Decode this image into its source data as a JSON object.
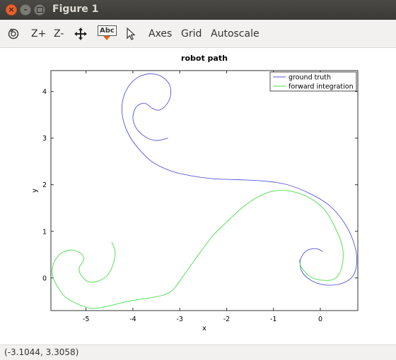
{
  "window": {
    "title": "Figure 1"
  },
  "toolbar": {
    "zoom_in": "Z+",
    "zoom_out": "Z-",
    "text_tool": "Abc",
    "axes": "Axes",
    "grid": "Grid",
    "autoscale": "Autoscale"
  },
  "status": {
    "coords": "(-3.1044, 3.3058)"
  },
  "colors": {
    "ground_truth": "#5555dd",
    "forward_integration": "#44dd44"
  },
  "chart_data": {
    "type": "line",
    "title": "robot path",
    "xlabel": "x",
    "ylabel": "y",
    "xlim": [
      -5.75,
      0.8
    ],
    "ylim": [
      -0.7,
      4.45
    ],
    "xticks": [
      -5,
      -4,
      -3,
      -2,
      -1,
      0
    ],
    "yticks": [
      0,
      1,
      2,
      3,
      4
    ],
    "legend_position": "top-right",
    "series": [
      {
        "name": "ground truth",
        "color": "#5555dd",
        "points": [
          [
            -3.25,
            3.0
          ],
          [
            -3.5,
            2.95
          ],
          [
            -3.72,
            3.02
          ],
          [
            -3.92,
            3.2
          ],
          [
            -4.0,
            3.45
          ],
          [
            -3.92,
            3.68
          ],
          [
            -3.75,
            3.75
          ],
          [
            -3.6,
            3.65
          ],
          [
            -3.45,
            3.6
          ],
          [
            -3.3,
            3.7
          ],
          [
            -3.2,
            3.9
          ],
          [
            -3.22,
            4.15
          ],
          [
            -3.4,
            4.33
          ],
          [
            -3.65,
            4.38
          ],
          [
            -3.9,
            4.3
          ],
          [
            -4.1,
            4.1
          ],
          [
            -4.22,
            3.8
          ],
          [
            -4.22,
            3.45
          ],
          [
            -4.1,
            3.1
          ],
          [
            -3.9,
            2.8
          ],
          [
            -3.6,
            2.5
          ],
          [
            -3.2,
            2.3
          ],
          [
            -2.8,
            2.2
          ],
          [
            -2.3,
            2.13
          ],
          [
            -1.8,
            2.11
          ],
          [
            -1.2,
            2.08
          ],
          [
            -0.7,
            2.0
          ],
          [
            -0.2,
            1.8
          ],
          [
            0.2,
            1.55
          ],
          [
            0.5,
            1.2
          ],
          [
            0.7,
            0.8
          ],
          [
            0.78,
            0.4
          ],
          [
            0.7,
            0.05
          ],
          [
            0.45,
            -0.12
          ],
          [
            0.1,
            -0.15
          ],
          [
            -0.2,
            -0.05
          ],
          [
            -0.4,
            0.15
          ],
          [
            -0.42,
            0.4
          ],
          [
            -0.3,
            0.58
          ],
          [
            -0.1,
            0.63
          ],
          [
            0.05,
            0.57
          ]
        ]
      },
      {
        "name": "forward integration",
        "color": "#44dd44",
        "points": [
          [
            -4.45,
            0.77
          ],
          [
            -4.38,
            0.55
          ],
          [
            -4.42,
            0.3
          ],
          [
            -4.55,
            0.05
          ],
          [
            -4.75,
            -0.07
          ],
          [
            -4.95,
            -0.08
          ],
          [
            -5.1,
            0.05
          ],
          [
            -5.15,
            0.2
          ],
          [
            -5.1,
            0.3
          ],
          [
            -5.05,
            0.4
          ],
          [
            -5.1,
            0.52
          ],
          [
            -5.3,
            0.6
          ],
          [
            -5.5,
            0.55
          ],
          [
            -5.65,
            0.4
          ],
          [
            -5.72,
            0.2
          ],
          [
            -5.7,
            0.0
          ],
          [
            -5.6,
            -0.2
          ],
          [
            -5.45,
            -0.4
          ],
          [
            -5.2,
            -0.55
          ],
          [
            -4.9,
            -0.65
          ],
          [
            -4.6,
            -0.62
          ],
          [
            -4.1,
            -0.5
          ],
          [
            -3.6,
            -0.42
          ],
          [
            -3.3,
            -0.35
          ],
          [
            -3.1,
            -0.2
          ],
          [
            -2.85,
            0.15
          ],
          [
            -2.6,
            0.5
          ],
          [
            -2.3,
            0.9
          ],
          [
            -2.0,
            1.2
          ],
          [
            -1.7,
            1.48
          ],
          [
            -1.4,
            1.7
          ],
          [
            -1.1,
            1.84
          ],
          [
            -0.8,
            1.88
          ],
          [
            -0.5,
            1.83
          ],
          [
            -0.2,
            1.7
          ],
          [
            0.1,
            1.45
          ],
          [
            0.33,
            1.05
          ],
          [
            0.48,
            0.62
          ],
          [
            0.45,
            0.2
          ],
          [
            0.3,
            -0.02
          ],
          [
            0.05,
            -0.05
          ],
          [
            -0.2,
            0.02
          ],
          [
            -0.4,
            0.22
          ],
          [
            -0.45,
            0.4
          ]
        ]
      }
    ]
  }
}
